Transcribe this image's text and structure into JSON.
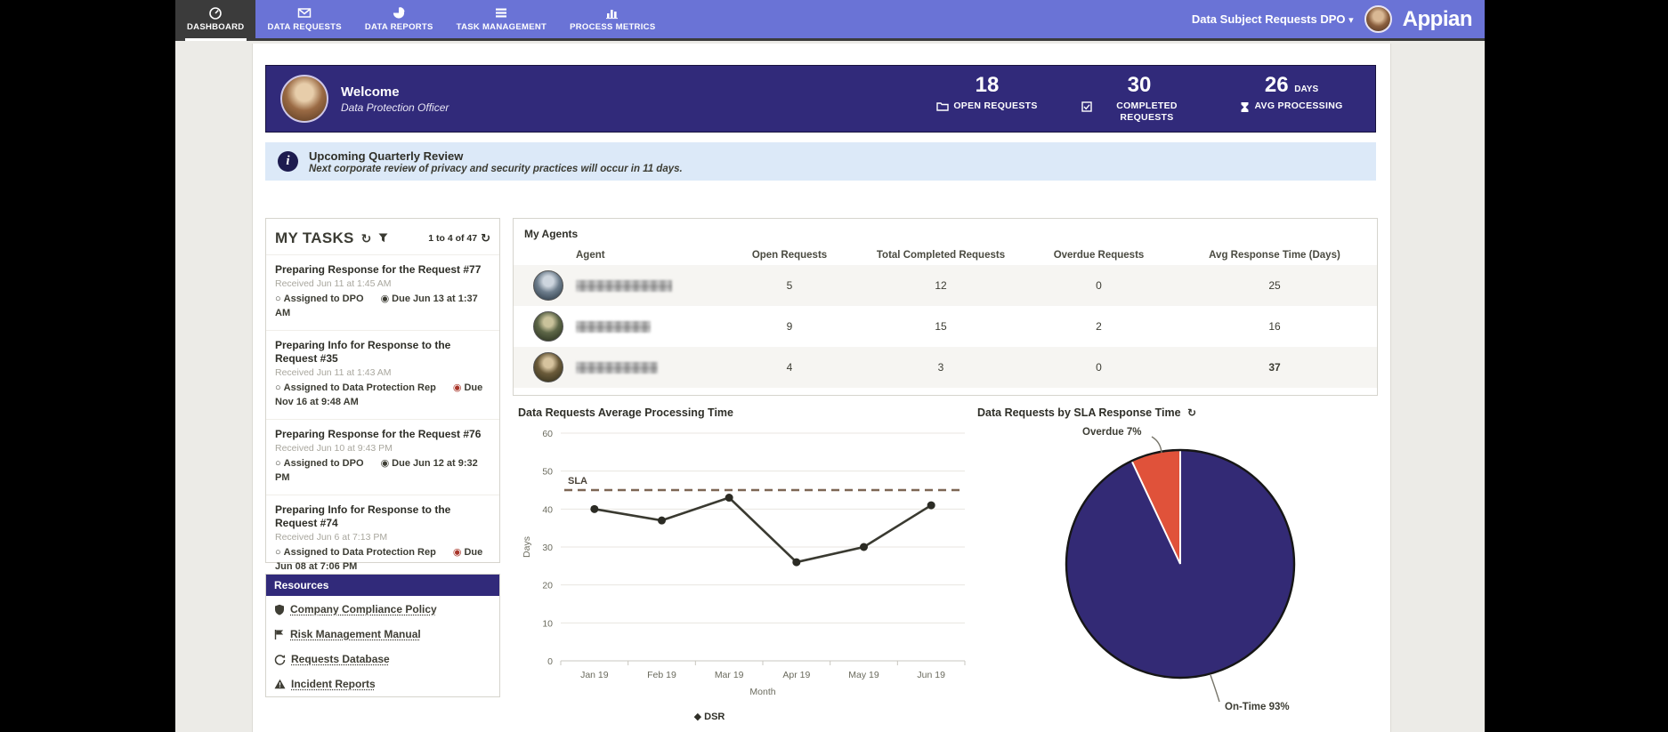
{
  "nav": {
    "tabs": [
      {
        "label": "DASHBOARD",
        "icon": "gauge-icon",
        "active": true
      },
      {
        "label": "DATA REQUESTS",
        "icon": "envelope-icon",
        "active": false
      },
      {
        "label": "DATA REPORTS",
        "icon": "pie-icon",
        "active": false
      },
      {
        "label": "TASK MANAGEMENT",
        "icon": "list-icon",
        "active": false
      },
      {
        "label": "PROCESS METRICS",
        "icon": "bar-chart-icon",
        "active": false
      }
    ],
    "context_label": "Data Subject Requests DPO",
    "context_caret": "▾",
    "brand": "Appian"
  },
  "welcome": {
    "title": "Welcome",
    "subtitle": "Data Protection Officer",
    "stats": [
      {
        "value": "18",
        "unit": "",
        "label": "OPEN REQUESTS",
        "icon": "folder-icon"
      },
      {
        "value": "30",
        "unit": "",
        "label": "COMPLETED REQUESTS",
        "icon": "check-square-icon"
      },
      {
        "value": "26",
        "unit": "DAYS",
        "label": "AVG PROCESSING",
        "icon": "hourglass-icon"
      }
    ]
  },
  "announcement": {
    "title": "Upcoming Quarterly Review",
    "message": "Next corporate review of privacy and security practices will occur in 11 days."
  },
  "tasks": {
    "title": "MY TASKS",
    "refresh_icon": "↻",
    "pagination": "1 to 4 of 47",
    "pagination_icon": "↻",
    "items": [
      {
        "title": "Preparing Response for the Request #77",
        "received": "Received Jun 11 at 1:45 AM",
        "assigned": "Assigned to DPO",
        "due": "Due Jun 13 at 1:37 AM",
        "overdue": false
      },
      {
        "title": "Preparing Info for Response to the Request #35",
        "received": "Received Jun 11 at 1:43 AM",
        "assigned": "Assigned to Data Protection Rep",
        "due": "Due Nov 16 at 9:48 AM",
        "overdue": true
      },
      {
        "title": "Preparing Response for the Request #76",
        "received": "Received Jun 10 at 9:43 PM",
        "assigned": "Assigned to DPO",
        "due": "Due Jun 12 at 9:32 PM",
        "overdue": false
      },
      {
        "title": "Preparing Info for Response to the Request #74",
        "received": "Received Jun 6 at 7:13 PM",
        "assigned": "Assigned to Data Protection Rep",
        "due": "Due Jun 08 at 7:06 PM",
        "overdue": true
      }
    ],
    "assigned_glyph": "○",
    "due_glyph": "◉"
  },
  "resources": {
    "title": "Resources",
    "links": [
      {
        "label": "Company Compliance Policy",
        "icon": "shield-icon"
      },
      {
        "label": "Risk Management Manual",
        "icon": "flag-icon"
      },
      {
        "label": "Requests Database",
        "icon": "refresh-edit-icon"
      },
      {
        "label": "Incident Reports",
        "icon": "warning-icon"
      }
    ]
  },
  "agents": {
    "title": "My Agents",
    "columns": [
      "Agent",
      "Open Requests",
      "Total Completed Requests",
      "Overdue Requests",
      "Avg Response Time (Days)"
    ],
    "rows": [
      {
        "name_blurred": true,
        "open": "5",
        "completed": "12",
        "overdue": "0",
        "avg": "25",
        "avg_highlight": false
      },
      {
        "name_blurred": true,
        "open": "9",
        "completed": "15",
        "overdue": "2",
        "avg": "16",
        "avg_highlight": false
      },
      {
        "name_blurred": true,
        "open": "4",
        "completed": "3",
        "overdue": "0",
        "avg": "37",
        "avg_highlight": true
      }
    ]
  },
  "chart_data": [
    {
      "type": "line",
      "title": "Data Requests Average Processing Time",
      "categories": [
        "Jan 19",
        "Feb 19",
        "Mar 19",
        "Apr 19",
        "May 19",
        "Jun 19"
      ],
      "series": [
        {
          "name": "DSR",
          "values": [
            40,
            37,
            43,
            26,
            30,
            41
          ]
        }
      ],
      "sla": {
        "label": "SLA",
        "value": 45
      },
      "xlabel": "Month",
      "ylabel": "Days",
      "ylim": [
        0,
        60
      ],
      "ytick_step": 10,
      "grid": true,
      "legend_position": "bottom",
      "line_color": "#3a3a31",
      "sla_color": "#7d6654"
    },
    {
      "type": "pie",
      "title": "Data Requests by SLA Response Time",
      "refresh_icon": "↻",
      "slices": [
        {
          "label": "On-Time",
          "pct": 93,
          "color": "#332a75"
        },
        {
          "label": "Overdue",
          "pct": 7,
          "color": "#e0523a"
        }
      ]
    }
  ],
  "colors": {
    "navbar": "#6a73d6",
    "active_tab": "#3b3b3b",
    "banner": "#312a7a",
    "info_banner": "#dce9f8",
    "pie_on_time": "#332a75",
    "pie_overdue": "#e0523a",
    "avg_highlight": "#c49a3f",
    "overdue_icon": "#a8362a"
  }
}
